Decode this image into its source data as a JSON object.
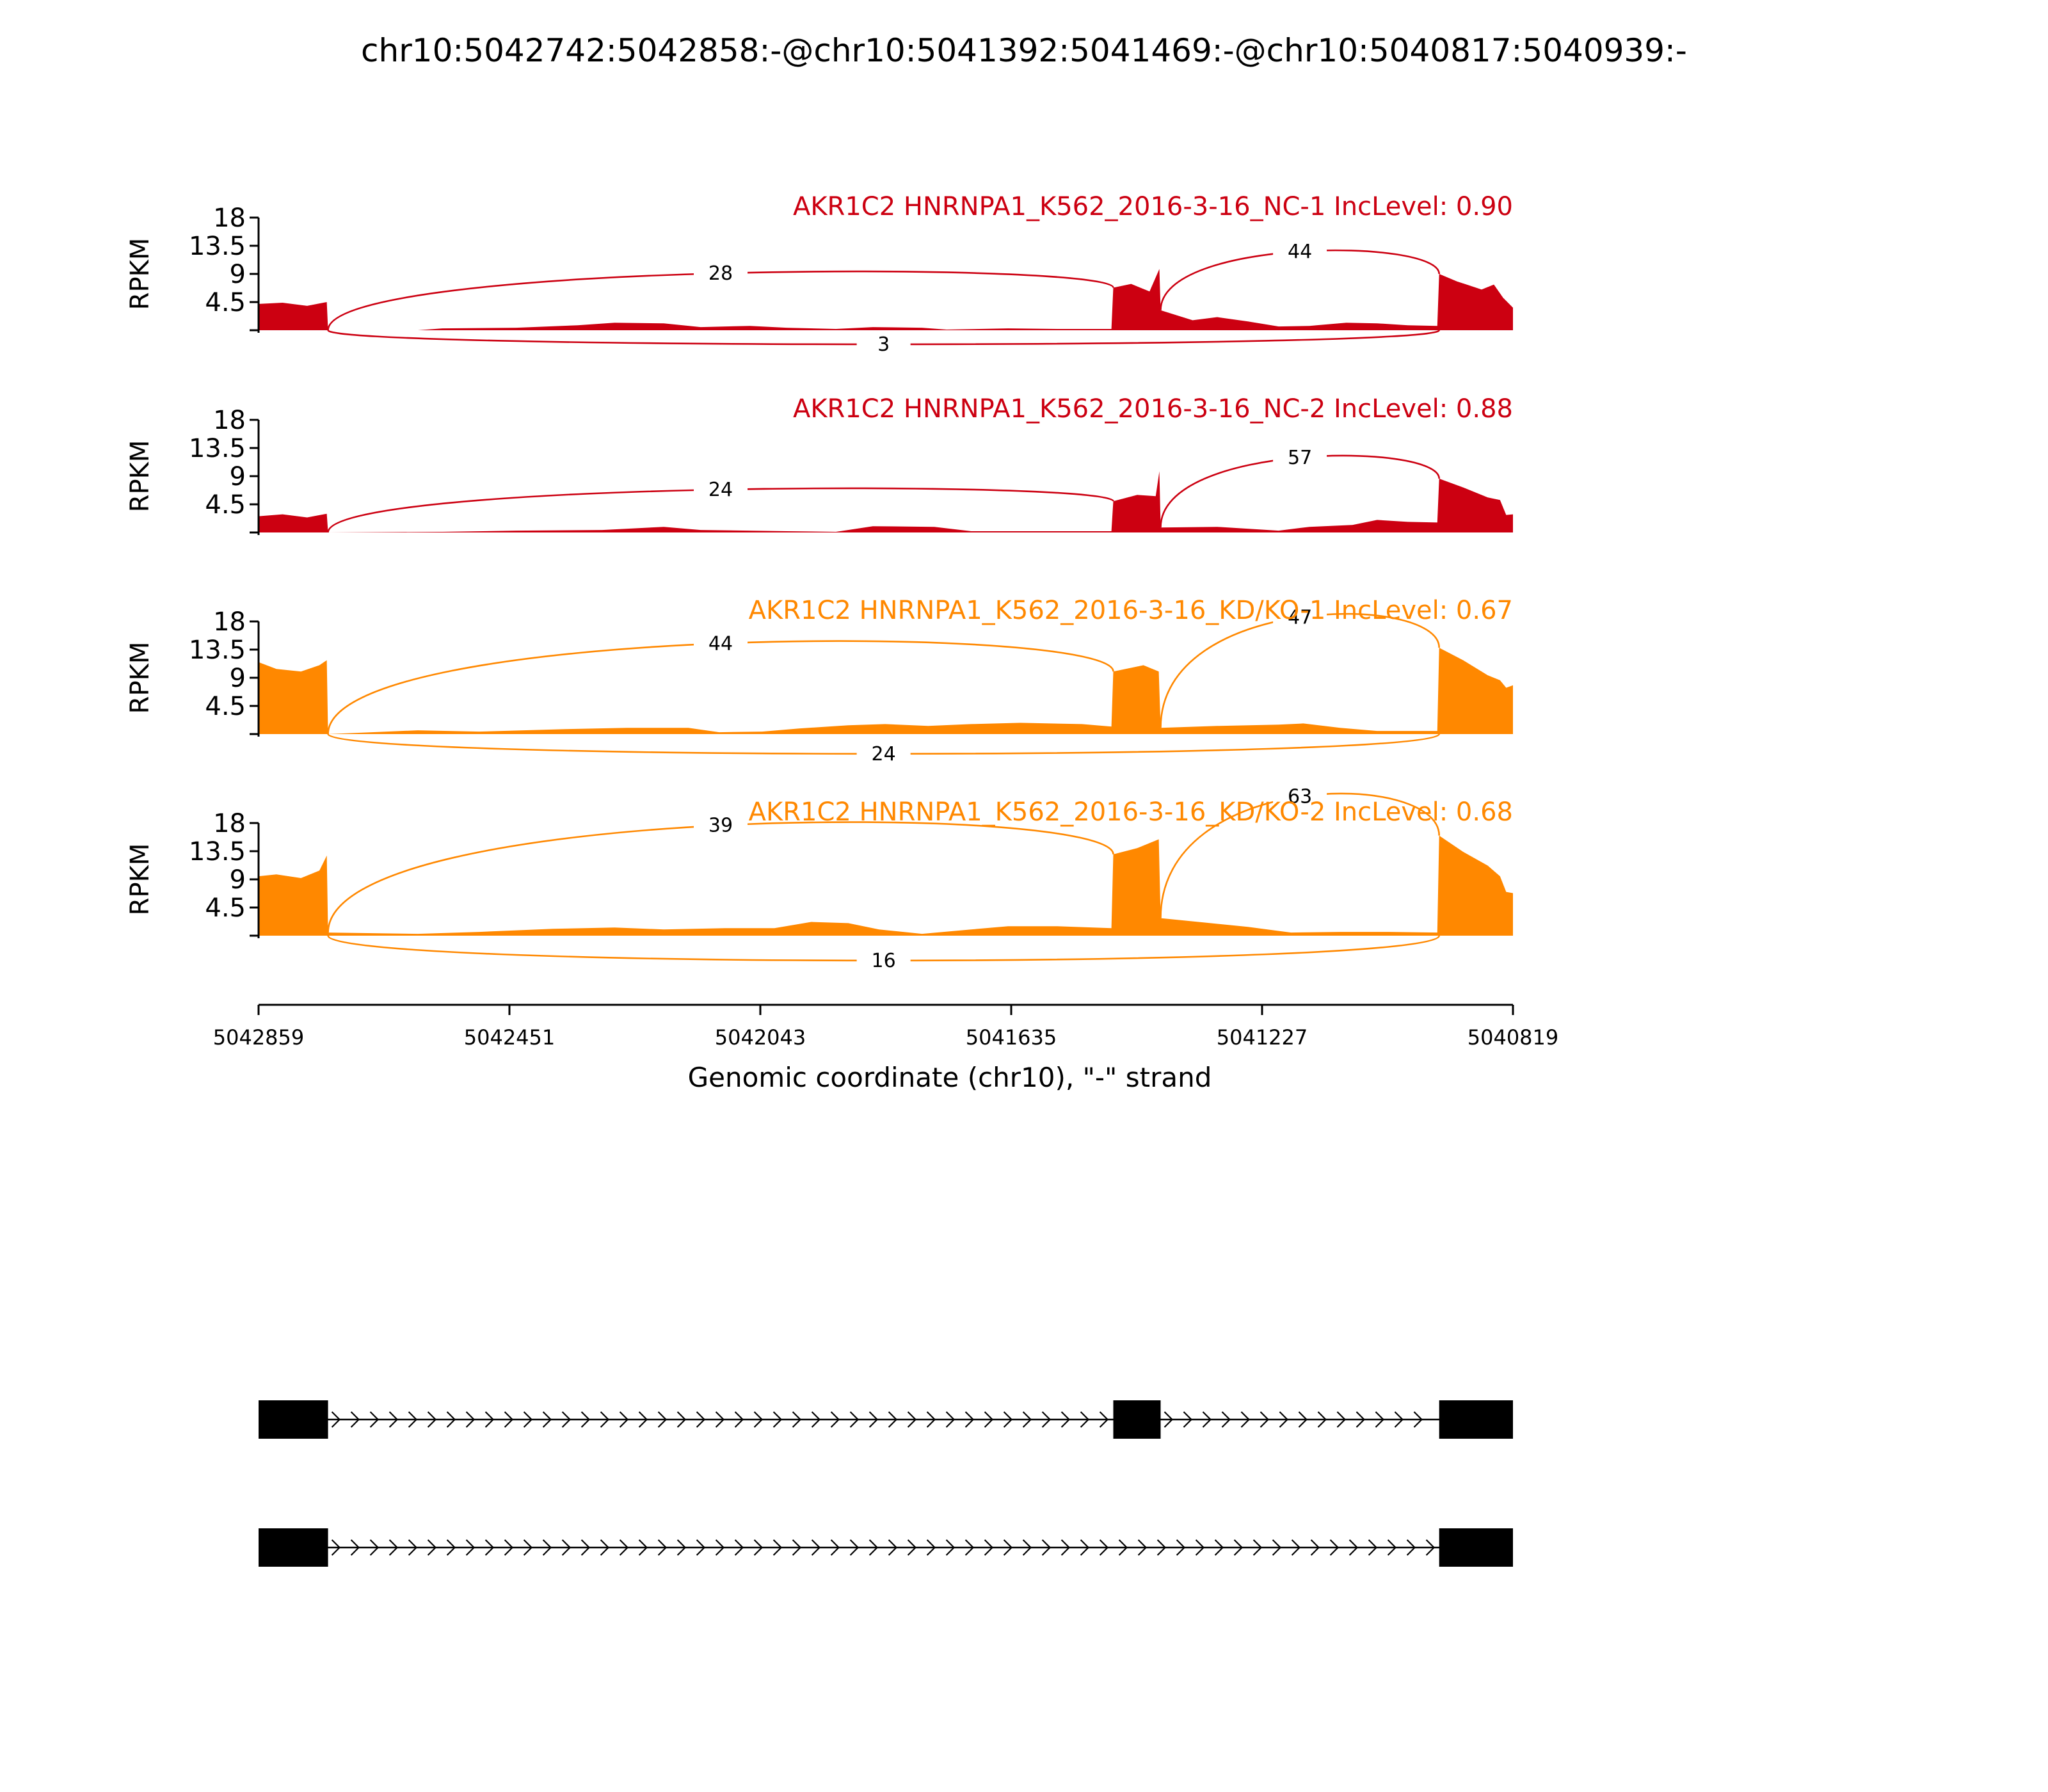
{
  "figure": {
    "title": "chr10:5042742:5042858:-@chr10:5041392:5041469:-@chr10:5040817:5040939:-"
  },
  "chart_data": {
    "type": "area",
    "x": {
      "label": "Genomic coordinate (chr10), \"-\" strand",
      "lim": [
        5042859,
        5040819
      ],
      "reversed": true,
      "ticks": [
        5042859,
        5042451,
        5042043,
        5041635,
        5041227,
        5040819
      ],
      "tick_labels": [
        "5042859",
        "5042451",
        "5042043",
        "5041635",
        "5041227",
        "5040819"
      ]
    },
    "y": {
      "label": "RPKM",
      "lim": [
        0,
        18
      ],
      "ticks": [
        4.5,
        9,
        13.5,
        18
      ],
      "tick_labels": [
        "4.5",
        "9",
        "13.5",
        "18"
      ]
    },
    "exons": [
      {
        "start": 5042859,
        "end": 5042746
      },
      {
        "start": 5041469,
        "end": 5041392
      },
      {
        "start": 5040939,
        "end": 5040819
      }
    ],
    "tracks": [
      {
        "label": "AKR1C2 HNRNPA1_K562_2016-3-16_NC-1 IncLevel: 0.90",
        "color": "#cc0011",
        "coverage": [
          [
            5042859,
            4.2
          ],
          [
            5042820,
            4.4
          ],
          [
            5042780,
            3.9
          ],
          [
            5042748,
            4.5
          ],
          [
            5042746,
            0
          ],
          [
            5042600,
            0
          ],
          [
            5042560,
            0.3
          ],
          [
            5042440,
            0.4
          ],
          [
            5042340,
            0.8
          ],
          [
            5042280,
            1.2
          ],
          [
            5042200,
            1.1
          ],
          [
            5042140,
            0.5
          ],
          [
            5042060,
            0.7
          ],
          [
            5042000,
            0.4
          ],
          [
            5041920,
            0.2
          ],
          [
            5041860,
            0.5
          ],
          [
            5041780,
            0.4
          ],
          [
            5041740,
            0.1
          ],
          [
            5041640,
            0.3
          ],
          [
            5041560,
            0.2
          ],
          [
            5041472,
            0.2
          ],
          [
            5041469,
            6.8
          ],
          [
            5041440,
            7.4
          ],
          [
            5041410,
            6.2
          ],
          [
            5041394,
            9.8
          ],
          [
            5041392,
            3.2
          ],
          [
            5041340,
            1.6
          ],
          [
            5041300,
            2.1
          ],
          [
            5041250,
            1.4
          ],
          [
            5041200,
            0.6
          ],
          [
            5041150,
            0.7
          ],
          [
            5041090,
            1.2
          ],
          [
            5041040,
            1.1
          ],
          [
            5040990,
            0.8
          ],
          [
            5040942,
            0.7
          ],
          [
            5040939,
            9.0
          ],
          [
            5040910,
            7.8
          ],
          [
            5040870,
            6.5
          ],
          [
            5040850,
            7.3
          ],
          [
            5040835,
            5.2
          ],
          [
            5040819,
            3.6
          ]
        ],
        "junctions": [
          {
            "from": 5042746,
            "to": 5041469,
            "count": "28",
            "side": "above",
            "height": 8.4
          },
          {
            "from": 5041392,
            "to": 5040939,
            "count": "44",
            "side": "above",
            "height": 11.5
          },
          {
            "from": 5042746,
            "to": 5040939,
            "count": "3",
            "side": "below",
            "height": 3.0
          }
        ]
      },
      {
        "label": "AKR1C2 HNRNPA1_K562_2016-3-16_NC-2 IncLevel: 0.88",
        "color": "#cc0011",
        "coverage": [
          [
            5042859,
            2.6
          ],
          [
            5042820,
            2.9
          ],
          [
            5042780,
            2.4
          ],
          [
            5042748,
            3.0
          ],
          [
            5042746,
            0
          ],
          [
            5042560,
            0.1
          ],
          [
            5042440,
            0.3
          ],
          [
            5042300,
            0.4
          ],
          [
            5042200,
            0.9
          ],
          [
            5042140,
            0.4
          ],
          [
            5042000,
            0.2
          ],
          [
            5041920,
            0.1
          ],
          [
            5041860,
            1.0
          ],
          [
            5041760,
            0.9
          ],
          [
            5041700,
            0.2
          ],
          [
            5041600,
            0.2
          ],
          [
            5041472,
            0.2
          ],
          [
            5041469,
            5.0
          ],
          [
            5041430,
            6.0
          ],
          [
            5041400,
            5.8
          ],
          [
            5041394,
            9.8
          ],
          [
            5041392,
            0.8
          ],
          [
            5041300,
            0.9
          ],
          [
            5041200,
            0.3
          ],
          [
            5041150,
            0.9
          ],
          [
            5041080,
            1.2
          ],
          [
            5041040,
            2.0
          ],
          [
            5040990,
            1.7
          ],
          [
            5040942,
            1.6
          ],
          [
            5040939,
            8.6
          ],
          [
            5040900,
            7.2
          ],
          [
            5040860,
            5.6
          ],
          [
            5040840,
            5.2
          ],
          [
            5040830,
            2.8
          ],
          [
            5040819,
            2.9
          ]
        ],
        "junctions": [
          {
            "from": 5042746,
            "to": 5041469,
            "count": "24",
            "side": "above",
            "height": 6.6
          },
          {
            "from": 5041392,
            "to": 5040939,
            "count": "57",
            "side": "above",
            "height": 11.6
          }
        ]
      },
      {
        "label": "AKR1C2 HNRNPA1_K562_2016-3-16_KD/KO-1 IncLevel: 0.67",
        "color": "#ff8800",
        "coverage": [
          [
            5042859,
            11.5
          ],
          [
            5042830,
            10.4
          ],
          [
            5042790,
            10.0
          ],
          [
            5042760,
            11.0
          ],
          [
            5042748,
            11.8
          ],
          [
            5042746,
            0
          ],
          [
            5042600,
            0.6
          ],
          [
            5042500,
            0.4
          ],
          [
            5042360,
            0.8
          ],
          [
            5042260,
            1.0
          ],
          [
            5042160,
            1.0
          ],
          [
            5042110,
            0.3
          ],
          [
            5042040,
            0.4
          ],
          [
            5041980,
            0.9
          ],
          [
            5041900,
            1.4
          ],
          [
            5041840,
            1.6
          ],
          [
            5041770,
            1.3
          ],
          [
            5041700,
            1.6
          ],
          [
            5041620,
            1.8
          ],
          [
            5041520,
            1.6
          ],
          [
            5041472,
            1.2
          ],
          [
            5041469,
            10.0
          ],
          [
            5041420,
            11.0
          ],
          [
            5041395,
            10.0
          ],
          [
            5041392,
            1.0
          ],
          [
            5041300,
            1.3
          ],
          [
            5041200,
            1.5
          ],
          [
            5041160,
            1.7
          ],
          [
            5041100,
            1.0
          ],
          [
            5041040,
            0.5
          ],
          [
            5040942,
            0.5
          ],
          [
            5040939,
            13.8
          ],
          [
            5040900,
            11.8
          ],
          [
            5040860,
            9.4
          ],
          [
            5040840,
            8.6
          ],
          [
            5040830,
            7.4
          ],
          [
            5040819,
            7.8
          ]
        ],
        "junctions": [
          {
            "from": 5042746,
            "to": 5041469,
            "count": "44",
            "side": "above",
            "height": 15.3
          },
          {
            "from": 5041392,
            "to": 5040939,
            "count": "47",
            "side": "above",
            "height": 17.3
          },
          {
            "from": 5042746,
            "to": 5040939,
            "count": "24",
            "side": "below",
            "height": 4.2
          }
        ]
      },
      {
        "label": "AKR1C2 HNRNPA1_K562_2016-3-16_KD/KO-2 IncLevel: 0.68",
        "color": "#ff8800",
        "coverage": [
          [
            5042859,
            9.5
          ],
          [
            5042830,
            9.8
          ],
          [
            5042790,
            9.2
          ],
          [
            5042760,
            10.4
          ],
          [
            5042748,
            12.8
          ],
          [
            5042746,
            0.5
          ],
          [
            5042600,
            0.3
          ],
          [
            5042500,
            0.6
          ],
          [
            5042380,
            1.1
          ],
          [
            5042280,
            1.3
          ],
          [
            5042200,
            1.0
          ],
          [
            5042100,
            1.2
          ],
          [
            5042020,
            1.2
          ],
          [
            5041960,
            2.2
          ],
          [
            5041900,
            2.0
          ],
          [
            5041850,
            1.0
          ],
          [
            5041780,
            0.3
          ],
          [
            5041700,
            1.0
          ],
          [
            5041640,
            1.5
          ],
          [
            5041560,
            1.5
          ],
          [
            5041472,
            1.2
          ],
          [
            5041469,
            13.0
          ],
          [
            5041430,
            14.0
          ],
          [
            5041395,
            15.4
          ],
          [
            5041392,
            2.8
          ],
          [
            5041320,
            2.1
          ],
          [
            5041250,
            1.4
          ],
          [
            5041180,
            0.5
          ],
          [
            5041100,
            0.6
          ],
          [
            5041020,
            0.6
          ],
          [
            5040942,
            0.5
          ],
          [
            5040939,
            16.0
          ],
          [
            5040900,
            13.4
          ],
          [
            5040860,
            11.2
          ],
          [
            5040840,
            9.5
          ],
          [
            5040830,
            7.0
          ],
          [
            5040819,
            6.8
          ]
        ],
        "junctions": [
          {
            "from": 5042746,
            "to": 5041469,
            "count": "39",
            "side": "above",
            "height": 16.5
          },
          {
            "from": 5041392,
            "to": 5040939,
            "count": "63",
            "side": "above",
            "height": 21.0
          },
          {
            "from": 5042746,
            "to": 5040939,
            "count": "16",
            "side": "below",
            "height": 5.3
          }
        ]
      }
    ],
    "isoforms": [
      {
        "exons": [
          [
            5042859,
            5042746
          ],
          [
            5041469,
            5041392
          ],
          [
            5040939,
            5040819
          ]
        ]
      },
      {
        "exons": [
          [
            5042859,
            5042746
          ],
          [
            5040939,
            5040819
          ]
        ]
      }
    ]
  }
}
